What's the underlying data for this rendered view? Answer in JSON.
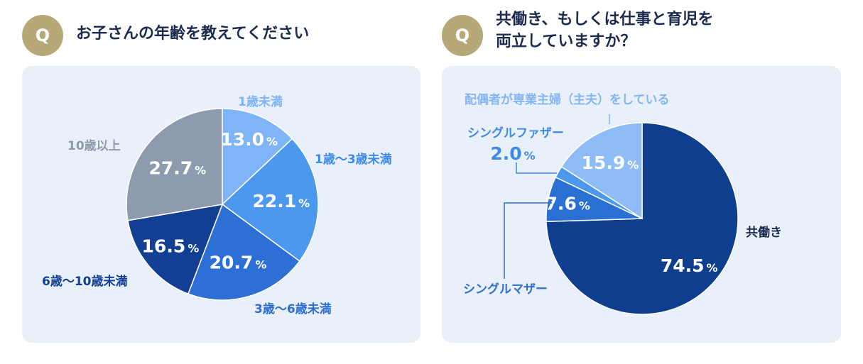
{
  "colors": {
    "badge": "#b7a877",
    "panel_bg": "#e9f0f9",
    "title_text": "#1d2b4f"
  },
  "left": {
    "badge_label": "Q",
    "question": "お子さんの年齢を教えてください"
  },
  "right": {
    "badge_label": "Q",
    "question_line1": "共働き、もしくは仕事と育児を",
    "question_line2": "両立していますか？"
  },
  "chart_data": [
    {
      "type": "pie",
      "title": "お子さんの年齢を教えてください",
      "unit": "%",
      "slices": [
        {
          "label": "1歳未満",
          "value": 13.0,
          "color": "#7fb4f7",
          "label_color": "#7fb4f7"
        },
        {
          "label": "1歳〜3歳未満",
          "value": 22.1,
          "color": "#4d98ef",
          "label_color": "#3f8ae6"
        },
        {
          "label": "3歳〜6歳未満",
          "value": 20.7,
          "color": "#2d6fd4",
          "label_color": "#2d6fd4"
        },
        {
          "label": "6歳〜10歳未満",
          "value": 16.5,
          "color": "#123f94",
          "label_color": "#123f94"
        },
        {
          "label": "10歳以上",
          "value": 27.7,
          "color": "#8e9aae",
          "label_color": "#8e9aae"
        }
      ]
    },
    {
      "type": "pie",
      "title": "共働き、もしくは仕事と育児を両立していますか？",
      "unit": "%",
      "slices": [
        {
          "label": "共働き",
          "value": 74.5,
          "color": "#103e8e",
          "label_color": "#1d2b4f"
        },
        {
          "label": "シングルマザー",
          "value": 7.6,
          "color": "#2a6fd2",
          "label_color": "#2d6fd4"
        },
        {
          "label": "シングルファザー",
          "value": 2.0,
          "color": "#4d98ef",
          "label_color": "#3f8ae6"
        },
        {
          "label": "配偶者が専業主婦（主夫）をしている",
          "value": 15.9,
          "color": "#8dbcf7",
          "label_color": "#84b5f5"
        }
      ]
    }
  ]
}
